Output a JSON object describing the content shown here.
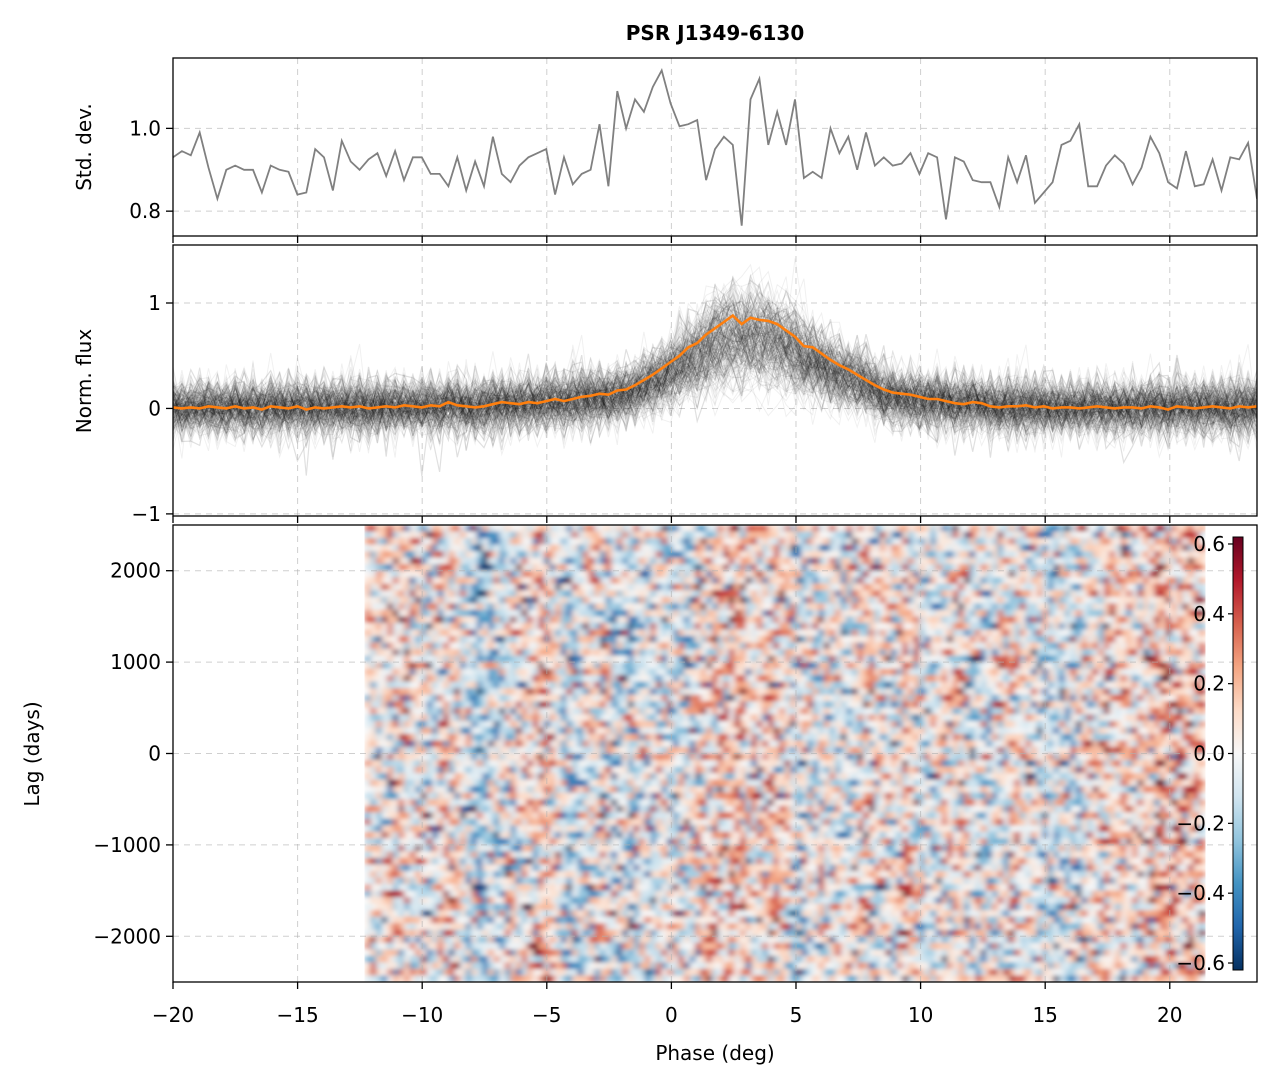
{
  "chart_data": [
    {
      "type": "line",
      "title": "PSR J1349-6130",
      "ylabel": "Std. dev.",
      "xlim": [
        -20,
        23.5
      ],
      "ylim": [
        0.74,
        1.17
      ],
      "yticks": [
        0.8,
        1.0
      ],
      "yticklabels": [
        "0.8",
        "1.0"
      ],
      "grid": true,
      "series": [
        {
          "color": "#808080",
          "x_start": -20,
          "x_end": 23.5,
          "values": [
            0.93,
            0.945,
            0.935,
            0.99,
            0.905,
            0.83,
            0.9,
            0.91,
            0.9,
            0.9,
            0.845,
            0.91,
            0.9,
            0.895,
            0.84,
            0.845,
            0.95,
            0.93,
            0.85,
            0.97,
            0.92,
            0.9,
            0.925,
            0.94,
            0.885,
            0.945,
            0.875,
            0.93,
            0.93,
            0.89,
            0.89,
            0.86,
            0.93,
            0.85,
            0.92,
            0.86,
            0.98,
            0.89,
            0.87,
            0.91,
            0.93,
            0.94,
            0.95,
            0.84,
            0.93,
            0.865,
            0.89,
            0.9,
            1.01,
            0.86,
            1.09,
            1.0,
            1.07,
            1.04,
            1.1,
            1.14,
            1.06,
            1.005,
            1.01,
            1.02,
            0.875,
            0.95,
            0.98,
            0.96,
            0.765,
            1.07,
            1.12,
            0.96,
            1.04,
            0.96,
            1.07,
            0.88,
            0.895,
            0.88,
            1.0,
            0.94,
            0.98,
            0.9,
            0.99,
            0.91,
            0.93,
            0.91,
            0.915,
            0.94,
            0.89,
            0.94,
            0.93,
            0.78,
            0.93,
            0.92,
            0.875,
            0.87,
            0.87,
            0.81,
            0.93,
            0.87,
            0.935,
            0.82,
            0.845,
            0.87,
            0.96,
            0.97,
            1.01,
            0.86,
            0.86,
            0.91,
            0.935,
            0.915,
            0.865,
            0.905,
            0.98,
            0.94,
            0.87,
            0.855,
            0.945,
            0.86,
            0.865,
            0.925,
            0.85,
            0.93,
            0.925,
            0.965,
            0.83
          ]
        }
      ]
    },
    {
      "type": "line",
      "ylabel": "Norm. flux",
      "xlim": [
        -20,
        23.5
      ],
      "ylim": [
        -1.02,
        1.55
      ],
      "yticks": [
        -1,
        0,
        1
      ],
      "yticklabels": [
        "−1",
        "0",
        "1"
      ],
      "grid": true,
      "series": [
        {
          "color": "#ff7f0e",
          "x_start": -20,
          "x_end": 23.5,
          "values": [
            0.01,
            0.0,
            0.01,
            0.0,
            0.02,
            0.01,
            0.0,
            0.02,
            0.0,
            0.01,
            -0.01,
            0.02,
            0.01,
            0.0,
            0.02,
            -0.01,
            0.01,
            0.0,
            0.01,
            0.02,
            0.01,
            0.02,
            0.0,
            0.01,
            0.02,
            0.01,
            0.03,
            0.02,
            0.01,
            0.03,
            0.02,
            0.06,
            0.03,
            0.02,
            0.01,
            0.02,
            0.04,
            0.06,
            0.05,
            0.04,
            0.06,
            0.05,
            0.07,
            0.09,
            0.07,
            0.09,
            0.11,
            0.12,
            0.14,
            0.13,
            0.17,
            0.18,
            0.22,
            0.27,
            0.32,
            0.38,
            0.44,
            0.5,
            0.58,
            0.62,
            0.7,
            0.76,
            0.82,
            0.88,
            0.8,
            0.86,
            0.84,
            0.83,
            0.8,
            0.74,
            0.68,
            0.59,
            0.58,
            0.52,
            0.46,
            0.41,
            0.37,
            0.32,
            0.27,
            0.22,
            0.18,
            0.15,
            0.14,
            0.13,
            0.11,
            0.09,
            0.09,
            0.07,
            0.05,
            0.04,
            0.06,
            0.05,
            0.02,
            0.01,
            0.02,
            0.02,
            0.03,
            0.01,
            0.02,
            0.0,
            0.01,
            0.01,
            0.0,
            0.01,
            0.02,
            0.01,
            0.0,
            0.01,
            0.01,
            0.0,
            0.02,
            0.01,
            -0.01,
            0.02,
            0.01,
            0.0,
            0.01,
            0.02,
            0.01,
            0.0,
            0.02,
            0.01,
            0.02
          ]
        }
      ],
      "background_traces": {
        "color": "#000000",
        "description_of_spread": "many noisy realisations around the orange mean profile"
      }
    },
    {
      "type": "heatmap",
      "xlabel": "Phase (deg)",
      "ylabel": "Lag (days)",
      "xlim": [
        -20,
        23.5
      ],
      "ylim": [
        -2500,
        2500
      ],
      "data_xrange": [
        -12.3,
        21.4
      ],
      "xticks": [
        -20,
        -15,
        -10,
        -5,
        0,
        5,
        10,
        15,
        20
      ],
      "xticklabels": [
        "−20",
        "−15",
        "−10",
        "−5",
        "0",
        "5",
        "10",
        "15",
        "20"
      ],
      "yticks": [
        -2000,
        -1000,
        0,
        1000,
        2000
      ],
      "yticklabels": [
        "−2000",
        "−1000",
        "0",
        "1000",
        "2000"
      ],
      "grid": true,
      "colormap": "RdBu_r",
      "colorbar": {
        "range": [
          -0.62,
          0.62
        ],
        "ticks": [
          -0.6,
          -0.4,
          -0.2,
          0.0,
          0.2,
          0.4,
          0.6
        ],
        "ticklabels": [
          "−0.6",
          "−0.4",
          "−0.2",
          "0.0",
          "0.2",
          "0.4",
          "0.6"
        ],
        "placement": "inside-right"
      }
    }
  ]
}
